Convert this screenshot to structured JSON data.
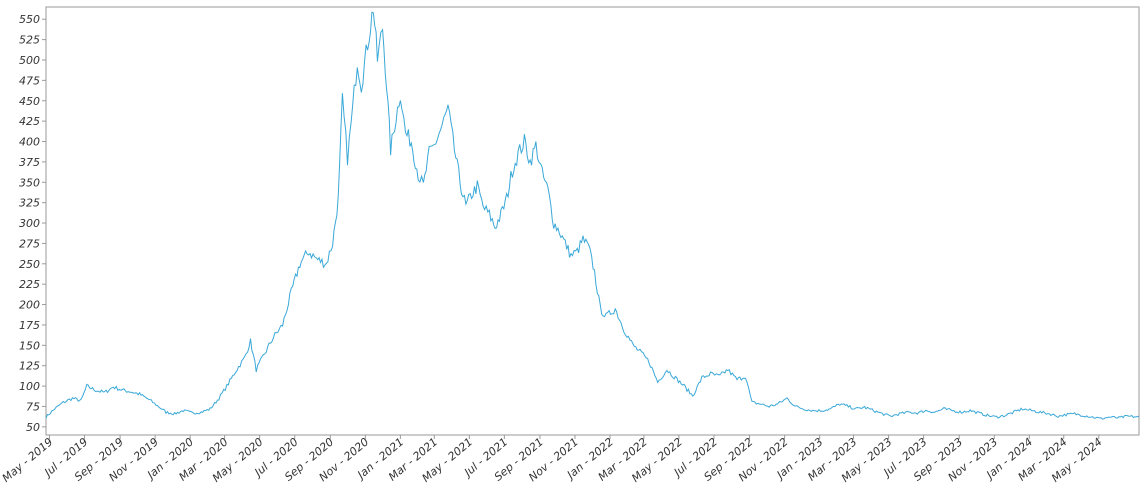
{
  "chart_data": {
    "type": "line",
    "title": "",
    "xlabel": "",
    "ylabel": "",
    "y_ticks": [
      50,
      75,
      100,
      125,
      150,
      175,
      200,
      225,
      250,
      275,
      300,
      325,
      350,
      375,
      400,
      425,
      450,
      475,
      500,
      525,
      550
    ],
    "ylim": [
      40,
      565
    ],
    "x_ticks": [
      "May - 2019",
      "Jul - 2019",
      "Sep - 2019",
      "Nov - 2019",
      "Jan - 2020",
      "Mar - 2020",
      "May - 2020",
      "Jul - 2020",
      "Sep - 2020",
      "Nov - 2020",
      "Jan - 2021",
      "Mar - 2021",
      "May - 2021",
      "Jul - 2021",
      "Sep - 2021",
      "Nov - 2021",
      "Jan - 2022",
      "Mar - 2022",
      "May - 2022",
      "Jul - 2022",
      "Sep - 2022",
      "Nov - 2022",
      "Jan - 2023",
      "Mar - 2023",
      "May - 2023",
      "Jul - 2023",
      "Sep - 2023",
      "Nov - 2023",
      "Jan - 2024",
      "Mar - 2024",
      "May - 2024"
    ],
    "xlim": [
      "2019-04-25",
      "2024-07-10"
    ],
    "grid": false,
    "series": [
      {
        "color": "#3aa8d8",
        "points": [
          [
            "2019-04-25",
            62
          ],
          [
            "2019-05-10",
            72
          ],
          [
            "2019-05-25",
            80
          ],
          [
            "2019-06-10",
            85
          ],
          [
            "2019-06-25",
            82
          ],
          [
            "2019-07-05",
            100
          ],
          [
            "2019-07-20",
            95
          ],
          [
            "2019-08-05",
            92
          ],
          [
            "2019-08-20",
            99
          ],
          [
            "2019-09-05",
            95
          ],
          [
            "2019-09-20",
            93
          ],
          [
            "2019-10-05",
            90
          ],
          [
            "2019-10-20",
            84
          ],
          [
            "2019-11-05",
            76
          ],
          [
            "2019-11-20",
            68
          ],
          [
            "2019-12-05",
            66
          ],
          [
            "2019-12-20",
            70
          ],
          [
            "2020-01-05",
            67
          ],
          [
            "2020-01-20",
            68
          ],
          [
            "2020-02-05",
            72
          ],
          [
            "2020-02-20",
            85
          ],
          [
            "2020-03-05",
            100
          ],
          [
            "2020-03-20",
            118
          ],
          [
            "2020-04-05",
            135
          ],
          [
            "2020-04-15",
            155
          ],
          [
            "2020-04-25",
            120
          ],
          [
            "2020-05-10",
            140
          ],
          [
            "2020-05-25",
            160
          ],
          [
            "2020-06-10",
            175
          ],
          [
            "2020-06-25",
            215
          ],
          [
            "2020-07-10",
            250
          ],
          [
            "2020-07-25",
            265
          ],
          [
            "2020-08-10",
            255
          ],
          [
            "2020-08-25",
            250
          ],
          [
            "2020-09-05",
            275
          ],
          [
            "2020-09-15",
            330
          ],
          [
            "2020-09-22",
            450
          ],
          [
            "2020-10-01",
            380
          ],
          [
            "2020-10-10",
            440
          ],
          [
            "2020-10-18",
            500
          ],
          [
            "2020-10-25",
            470
          ],
          [
            "2020-11-05",
            520
          ],
          [
            "2020-11-15",
            565
          ],
          [
            "2020-11-22",
            500
          ],
          [
            "2020-12-01",
            540
          ],
          [
            "2020-12-08",
            470
          ],
          [
            "2020-12-15",
            390
          ],
          [
            "2020-12-22",
            420
          ],
          [
            "2021-01-01",
            460
          ],
          [
            "2021-01-10",
            410
          ],
          [
            "2021-01-20",
            400
          ],
          [
            "2021-02-01",
            360
          ],
          [
            "2021-02-10",
            345
          ],
          [
            "2021-02-20",
            385
          ],
          [
            "2021-03-01",
            395
          ],
          [
            "2021-03-15",
            420
          ],
          [
            "2021-03-25",
            440
          ],
          [
            "2021-04-05",
            390
          ],
          [
            "2021-04-15",
            350
          ],
          [
            "2021-04-25",
            320
          ],
          [
            "2021-05-05",
            335
          ],
          [
            "2021-05-15",
            345
          ],
          [
            "2021-05-25",
            320
          ],
          [
            "2021-06-05",
            310
          ],
          [
            "2021-06-15",
            295
          ],
          [
            "2021-06-25",
            310
          ],
          [
            "2021-07-05",
            330
          ],
          [
            "2021-07-15",
            365
          ],
          [
            "2021-07-25",
            385
          ],
          [
            "2021-08-05",
            400
          ],
          [
            "2021-08-15",
            375
          ],
          [
            "2021-08-25",
            395
          ],
          [
            "2021-09-05",
            360
          ],
          [
            "2021-09-15",
            340
          ],
          [
            "2021-09-25",
            300
          ],
          [
            "2021-10-05",
            290
          ],
          [
            "2021-10-15",
            275
          ],
          [
            "2021-10-25",
            260
          ],
          [
            "2021-11-05",
            265
          ],
          [
            "2021-11-15",
            280
          ],
          [
            "2021-11-25",
            270
          ],
          [
            "2021-12-05",
            240
          ],
          [
            "2021-12-15",
            195
          ],
          [
            "2021-12-25",
            185
          ],
          [
            "2022-01-10",
            195
          ],
          [
            "2022-01-25",
            170
          ],
          [
            "2022-02-10",
            150
          ],
          [
            "2022-02-25",
            140
          ],
          [
            "2022-03-10",
            130
          ],
          [
            "2022-03-25",
            105
          ],
          [
            "2022-04-10",
            120
          ],
          [
            "2022-04-25",
            110
          ],
          [
            "2022-05-10",
            100
          ],
          [
            "2022-05-25",
            88
          ],
          [
            "2022-06-10",
            110
          ],
          [
            "2022-06-25",
            115
          ],
          [
            "2022-07-10",
            112
          ],
          [
            "2022-07-25",
            120
          ],
          [
            "2022-08-10",
            108
          ],
          [
            "2022-08-25",
            112
          ],
          [
            "2022-09-05",
            80
          ],
          [
            "2022-09-20",
            78
          ],
          [
            "2022-10-05",
            75
          ],
          [
            "2022-10-20",
            78
          ],
          [
            "2022-11-05",
            85
          ],
          [
            "2022-11-20",
            75
          ],
          [
            "2022-12-05",
            72
          ],
          [
            "2022-12-20",
            70
          ],
          [
            "2023-01-05",
            70
          ],
          [
            "2023-01-20",
            72
          ],
          [
            "2023-02-05",
            78
          ],
          [
            "2023-02-20",
            75
          ],
          [
            "2023-03-05",
            72
          ],
          [
            "2023-03-20",
            74
          ],
          [
            "2023-04-05",
            70
          ],
          [
            "2023-04-20",
            66
          ],
          [
            "2023-05-05",
            63
          ],
          [
            "2023-05-20",
            66
          ],
          [
            "2023-06-05",
            68
          ],
          [
            "2023-06-20",
            67
          ],
          [
            "2023-07-05",
            70
          ],
          [
            "2023-07-20",
            68
          ],
          [
            "2023-08-05",
            72
          ],
          [
            "2023-08-20",
            70
          ],
          [
            "2023-09-05",
            68
          ],
          [
            "2023-09-20",
            70
          ],
          [
            "2023-10-05",
            67
          ],
          [
            "2023-10-20",
            64
          ],
          [
            "2023-11-05",
            62
          ],
          [
            "2023-11-20",
            64
          ],
          [
            "2023-12-05",
            68
          ],
          [
            "2023-12-20",
            72
          ],
          [
            "2024-01-05",
            70
          ],
          [
            "2024-01-20",
            68
          ],
          [
            "2024-02-05",
            66
          ],
          [
            "2024-02-20",
            63
          ],
          [
            "2024-03-05",
            65
          ],
          [
            "2024-03-20",
            66
          ],
          [
            "2024-04-05",
            64
          ],
          [
            "2024-04-20",
            62
          ],
          [
            "2024-05-05",
            60
          ],
          [
            "2024-05-20",
            62
          ],
          [
            "2024-06-05",
            61
          ],
          [
            "2024-06-20",
            63
          ],
          [
            "2024-07-10",
            62
          ]
        ]
      }
    ]
  }
}
